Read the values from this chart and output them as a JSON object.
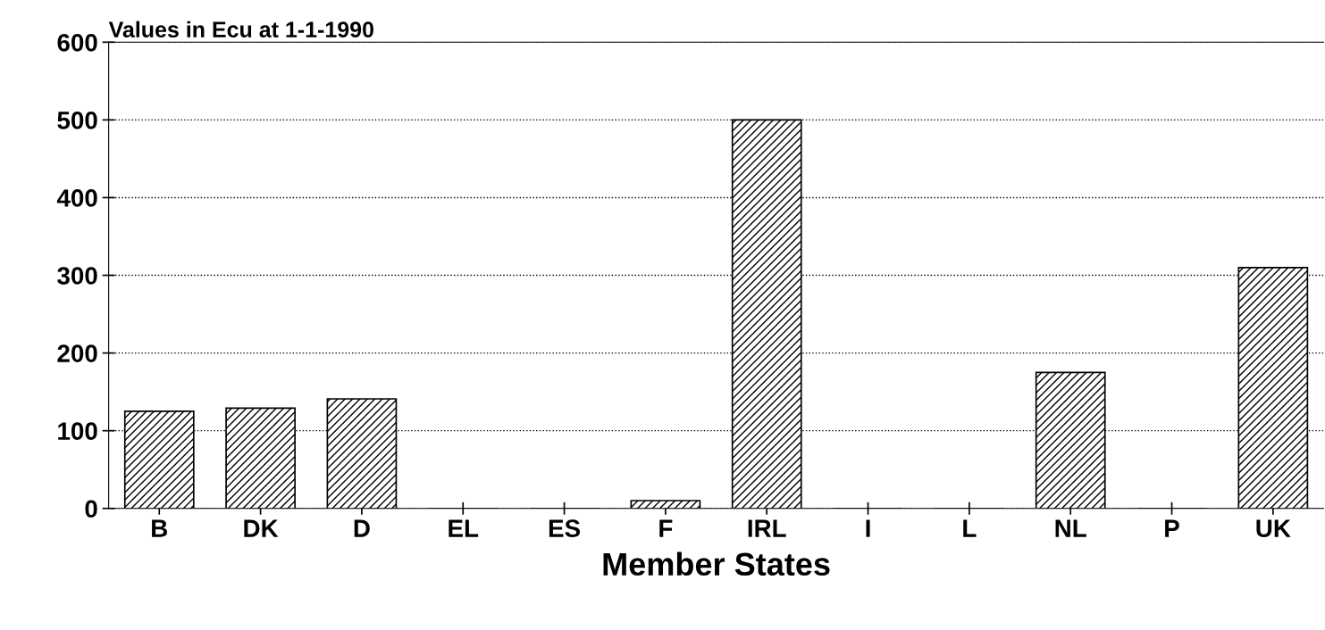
{
  "chart_data": {
    "type": "bar",
    "title": "Values in Ecu at 1-1-1990",
    "xlabel": "Member States",
    "categories": [
      "B",
      "DK",
      "D",
      "EL",
      "ES",
      "F",
      "IRL",
      "I",
      "L",
      "NL",
      "P",
      "UK"
    ],
    "values": [
      125,
      129,
      141,
      0,
      0,
      10,
      500,
      0,
      0,
      175,
      0,
      310
    ],
    "color": "#000000",
    "ylim": [
      0,
      600
    ],
    "yticks": [
      0,
      100,
      200,
      300,
      400,
      500,
      600
    ],
    "grid": "y"
  }
}
